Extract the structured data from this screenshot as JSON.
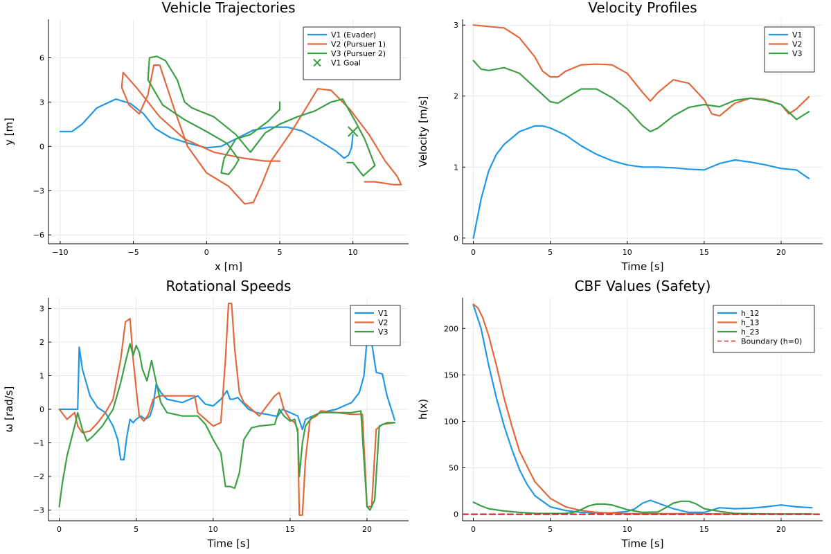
{
  "colors": {
    "c1": "#1f97e5",
    "c2": "#e2683c",
    "c3": "#3ba043",
    "boundary": "#d62728"
  },
  "chart_data": [
    {
      "id": "traj",
      "type": "line",
      "title": "Vehicle Trajectories",
      "xlabel": "x [m]",
      "ylabel": "y [m]",
      "xlim": [
        -10.8,
        13.8
      ],
      "ylim": [
        -6.6,
        8.6
      ],
      "xticks": [
        -10,
        -5,
        0,
        5,
        10
      ],
      "yticks": [
        -6,
        -3,
        0,
        3,
        6
      ],
      "xtick_labels": [
        "−10",
        "−5",
        "0",
        "5",
        "10"
      ],
      "ytick_labels": [
        "−6",
        "−3",
        "0",
        "3",
        "6"
      ],
      "grid": true,
      "legend_position": "top-right",
      "series": [
        {
          "name": "V1 (Evader)",
          "color": "#1f97e5",
          "x": [
            -10,
            -9.2,
            -8.5,
            -7.5,
            -6.2,
            -5.2,
            -4.3,
            -3.5,
            -2.5,
            -1.2,
            0,
            1,
            2.2,
            3.2,
            4.3,
            5.5,
            6.5,
            7.5,
            8.8,
            9.4,
            9.7,
            9.9,
            10
          ],
          "y": [
            1,
            1,
            1.5,
            2.6,
            3.2,
            2.9,
            2.2,
            1.2,
            0.6,
            0.2,
            -0.1,
            0,
            0.6,
            1.1,
            1.3,
            1.3,
            1.05,
            0.5,
            -0.3,
            -0.8,
            -0.6,
            -0.1,
            0.8
          ]
        },
        {
          "name": "V2 (Pursuer 1)",
          "color": "#e2683c",
          "x": [
            5,
            4,
            2.5,
            0.5,
            -1.5,
            -3.2,
            -4.8,
            -5.7,
            -5.8,
            -5.3,
            -4.6,
            -4,
            -3.6,
            -3.2,
            -2.2,
            -1.3,
            0,
            1.5,
            2.6,
            3.2,
            3.8,
            4.4,
            5.8,
            6.8,
            7.6,
            8.5,
            9.8,
            11.1,
            12.2,
            13,
            13.3,
            12.8,
            11.5,
            10.8
          ],
          "y": [
            -1,
            -1,
            -0.8,
            -0.4,
            0.5,
            2,
            4,
            5,
            4,
            2.8,
            2.2,
            3.5,
            5.5,
            5.5,
            2.5,
            0,
            -1.8,
            -2.7,
            -3.9,
            -3.8,
            -2.5,
            -1,
            1,
            2.6,
            3.9,
            3.8,
            2.5,
            0.8,
            -1,
            -2,
            -2.6,
            -2.6,
            -2.4,
            -2.4
          ]
        },
        {
          "name": "V3 (Pursuer 2)",
          "color": "#3ba043",
          "x": [
            5,
            5,
            4.2,
            3,
            2,
            1.2,
            1,
            1.5,
            1.9,
            2.2,
            1.4,
            0,
            -1.5,
            -3,
            -4,
            -3.9,
            -3.4,
            -2.8,
            -2,
            -1.5,
            -1,
            0.5,
            2,
            3,
            4,
            5,
            6.2,
            7.4,
            8.5,
            9.3,
            10.1,
            10.8,
            11.5,
            10.7,
            10,
            9.6
          ],
          "y": [
            3,
            2.5,
            1.7,
            0.8,
            0.5,
            -0.8,
            -1.8,
            -1.9,
            -1.4,
            -0.9,
            0.2,
            1,
            1.8,
            2.8,
            4.5,
            6,
            6.1,
            5.8,
            4.5,
            3,
            2.6,
            2,
            0.8,
            -0.4,
            0.9,
            1.5,
            2,
            2.4,
            3,
            3.2,
            1.8,
            0.5,
            -1.3,
            -2.0,
            -1.1,
            -1.1
          ]
        }
      ],
      "markers": [
        {
          "name": "V1 Goal",
          "color": "#3ba043",
          "x": 10,
          "y": 1,
          "symbol": "x"
        }
      ]
    },
    {
      "id": "vel",
      "type": "line",
      "title": "Velocity Profiles",
      "xlabel": "Time [s]",
      "ylabel": "Velocity [m/s]",
      "xlim": [
        -0.7,
        22.7
      ],
      "ylim": [
        -0.08,
        3.08
      ],
      "xticks": [
        0,
        5,
        10,
        15,
        20
      ],
      "yticks": [
        0,
        1,
        2,
        3
      ],
      "xtick_labels": [
        "0",
        "5",
        "10",
        "15",
        "20"
      ],
      "ytick_labels": [
        "0",
        "1",
        "2",
        "3"
      ],
      "grid": true,
      "legend_position": "top-right",
      "series": [
        {
          "name": "V1",
          "color": "#1f97e5",
          "x": [
            0,
            0.5,
            1,
            1.5,
            2,
            3,
            4,
            4.5,
            5,
            6,
            7,
            8,
            9,
            10,
            11,
            12,
            13,
            14,
            15,
            16,
            17,
            18,
            19,
            20,
            21,
            21.8
          ],
          "y": [
            0,
            0.55,
            0.95,
            1.18,
            1.32,
            1.5,
            1.58,
            1.58,
            1.55,
            1.45,
            1.3,
            1.18,
            1.09,
            1.03,
            1,
            1,
            0.99,
            0.97,
            0.96,
            1.05,
            1.1,
            1.07,
            1.03,
            0.98,
            0.96,
            0.84
          ]
        },
        {
          "name": "V2",
          "color": "#e2683c",
          "x": [
            0,
            1,
            2,
            3,
            4,
            4.5,
            5,
            5.5,
            6,
            7,
            8,
            9,
            10,
            11,
            11.5,
            12,
            13,
            14,
            15,
            15.5,
            16,
            17,
            18,
            19,
            20,
            20.5,
            21,
            21.8
          ],
          "y": [
            3,
            2.98,
            2.96,
            2.82,
            2.55,
            2.35,
            2.27,
            2.27,
            2.35,
            2.44,
            2.45,
            2.44,
            2.32,
            2.05,
            1.93,
            2.05,
            2.23,
            2.18,
            1.95,
            1.75,
            1.72,
            1.9,
            1.97,
            1.95,
            1.88,
            1.75,
            1.82,
            1.99
          ]
        },
        {
          "name": "V3",
          "color": "#3ba043",
          "x": [
            0,
            0.5,
            1,
            2,
            3,
            4,
            5,
            5.5,
            6,
            7,
            8,
            9,
            10,
            11,
            11.5,
            12,
            13,
            14,
            15,
            16,
            17,
            18,
            19,
            20,
            21,
            21.8
          ],
          "y": [
            2.5,
            2.38,
            2.36,
            2.4,
            2.32,
            2.12,
            1.92,
            1.9,
            1.97,
            2.1,
            2.1,
            1.98,
            1.82,
            1.58,
            1.5,
            1.55,
            1.72,
            1.84,
            1.88,
            1.85,
            1.94,
            1.97,
            1.94,
            1.88,
            1.67,
            1.78
          ]
        }
      ]
    },
    {
      "id": "rot",
      "type": "line",
      "title": "Rotational Speeds",
      "xlabel": "Time [s]",
      "ylabel": "ω [rad/s]",
      "xlim": [
        -0.7,
        22.7
      ],
      "ylim": [
        -3.32,
        3.32
      ],
      "xticks": [
        0,
        5,
        10,
        15,
        20
      ],
      "yticks": [
        -3,
        -2,
        -1,
        0,
        1,
        2,
        3
      ],
      "xtick_labels": [
        "0",
        "5",
        "10",
        "15",
        "20"
      ],
      "ytick_labels": [
        "−3",
        "−2",
        "−1",
        "0",
        "1",
        "2",
        "3"
      ],
      "grid": true,
      "legend_position": "top-right",
      "series": [
        {
          "name": "V1",
          "color": "#1f97e5",
          "x": [
            0,
            1,
            1.2,
            1.3,
            1.5,
            2,
            2.5,
            3,
            3.5,
            3.8,
            4,
            4.2,
            4.4,
            4.6,
            4.8,
            5,
            5.3,
            5.6,
            5.9,
            6.1,
            6.3,
            6.6,
            7,
            8,
            9,
            9.5,
            10,
            10.5,
            10.9,
            11.1,
            11.3,
            11.6,
            11.9,
            12.3,
            12.8,
            13.5,
            14,
            14.2,
            14.5,
            15,
            15.5,
            15.8,
            16,
            16.5,
            17,
            18,
            19,
            19.5,
            19.8,
            20,
            20.3,
            20.6,
            21,
            21.3,
            21.8
          ],
          "y": [
            0,
            0,
            0,
            1.85,
            1.2,
            0.4,
            0.05,
            -0.1,
            -0.5,
            -0.9,
            -1.5,
            -1.5,
            -0.8,
            -0.3,
            -0.4,
            -0.3,
            -0.2,
            -0.3,
            -0.2,
            0.1,
            0.75,
            0.5,
            0.3,
            0.2,
            0.4,
            0.15,
            0.1,
            0.3,
            0.55,
            0.3,
            0.3,
            0.35,
            0.2,
            0,
            -0.1,
            -0.15,
            -0.2,
            -0.2,
            0,
            -0.1,
            -0.2,
            -0.6,
            -0.3,
            -0.2,
            -0.1,
            0,
            0.2,
            0.5,
            1,
            2.1,
            2.0,
            1.1,
            1.05,
            0.4,
            -0.32
          ]
        },
        {
          "name": "V2",
          "color": "#e2683c",
          "x": [
            0,
            0.5,
            1,
            1.2,
            1.5,
            2,
            2.5,
            3,
            3.5,
            4,
            4.3,
            4.6,
            4.8,
            5,
            5.2,
            5.5,
            5.8,
            6.1,
            6.5,
            7,
            8,
            8.8,
            9,
            9.5,
            10,
            10.5,
            10.8,
            11,
            11.2,
            11.4,
            11.7,
            12,
            12.5,
            13,
            14,
            14.3,
            14.6,
            15,
            15.3,
            15.5,
            15.6,
            15.8,
            16,
            16.3,
            16.7,
            17,
            18,
            19,
            19.7,
            20,
            20.3,
            20.6,
            21,
            21.8
          ],
          "y": [
            0,
            -0.3,
            -0.1,
            -0.5,
            -0.7,
            -0.65,
            -0.4,
            -0.1,
            0.3,
            1.5,
            2.6,
            2.7,
            1.5,
            0.6,
            -0.2,
            -0.35,
            -0.15,
            0.3,
            0.4,
            0.4,
            0.4,
            0.4,
            -0.1,
            -0.3,
            -0.5,
            -0.4,
            1.5,
            3.15,
            3.15,
            1.8,
            0.5,
            0.2,
            0,
            -0.2,
            0.4,
            0.5,
            0,
            -0.3,
            -0.4,
            -0.6,
            -3.15,
            -3.15,
            -1.5,
            -0.3,
            -0.2,
            -0.05,
            -0.1,
            -0.15,
            -0.15,
            -2.9,
            -2.9,
            -0.6,
            -0.45,
            -0.4
          ]
        },
        {
          "name": "V3",
          "color": "#3ba043",
          "x": [
            0,
            0.2,
            0.5,
            1,
            1.2,
            1.5,
            1.8,
            2.2,
            2.8,
            3.5,
            4,
            4.3,
            4.6,
            4.8,
            5,
            5.2,
            5.4,
            5.7,
            6,
            6.3,
            6.6,
            7,
            8,
            9,
            9.5,
            10,
            10.5,
            10.8,
            11.1,
            11.4,
            11.7,
            12,
            12.5,
            13,
            14,
            14.3,
            14.6,
            15,
            15.3,
            15.5,
            15.6,
            15.8,
            16,
            16.5,
            17,
            18,
            19,
            19.6,
            19.8,
            20,
            20.2,
            20.5,
            20.8,
            21.3,
            21.8
          ],
          "y": [
            -2.9,
            -2.2,
            -1.4,
            -0.5,
            -0.1,
            -0.6,
            -0.95,
            -0.8,
            -0.5,
            0,
            0.8,
            1.4,
            1.95,
            1.6,
            1.9,
            1.7,
            1.2,
            0.85,
            1.45,
            0.8,
            0.2,
            -0.1,
            -0.2,
            -0.2,
            -0.45,
            -0.9,
            -1.3,
            -2.3,
            -2.3,
            -2.35,
            -1.9,
            -0.9,
            -0.55,
            -0.5,
            -0.45,
            0,
            -0.2,
            -0.35,
            -0.3,
            -0.7,
            -2.0,
            -1.0,
            -0.5,
            -0.2,
            -0.1,
            -0.1,
            -0.1,
            -0.05,
            -1.5,
            -2.9,
            -3.0,
            -2.7,
            -0.5,
            -0.4,
            -0.4
          ]
        }
      ]
    },
    {
      "id": "cbf",
      "type": "line",
      "title": "CBF Values (Safety)",
      "xlabel": "Time [s]",
      "ylabel": "h(x)",
      "xlim": [
        -0.7,
        22.7
      ],
      "ylim": [
        -7,
        233
      ],
      "xticks": [
        0,
        5,
        10,
        15,
        20
      ],
      "yticks": [
        0,
        50,
        100,
        150,
        200
      ],
      "xtick_labels": [
        "0",
        "5",
        "10",
        "15",
        "20"
      ],
      "ytick_labels": [
        "0",
        "50",
        "100",
        "150",
        "200"
      ],
      "grid": true,
      "legend_position": "top-right",
      "series": [
        {
          "name": "h_12",
          "color": "#1f97e5",
          "x": [
            0,
            0.5,
            1,
            1.5,
            2,
            2.5,
            3,
            3.5,
            4,
            5,
            6,
            7,
            8,
            9,
            10,
            10.5,
            11,
            11.5,
            12,
            13,
            14,
            15,
            16,
            17,
            18,
            19,
            20,
            21,
            22
          ],
          "y": [
            225,
            200,
            160,
            125,
            95,
            70,
            48,
            32,
            20,
            8,
            4,
            2,
            1.5,
            1.5,
            3,
            6,
            12,
            15,
            12,
            6,
            2,
            2,
            7,
            6,
            6.5,
            8,
            10,
            8,
            7
          ]
        },
        {
          "name": "h_13",
          "color": "#e2683c",
          "x": [
            0,
            0.3,
            0.6,
            1,
            1.5,
            2,
            2.5,
            3,
            4,
            5,
            6,
            7,
            8,
            10,
            12,
            14,
            16,
            18,
            20,
            22
          ],
          "y": [
            226,
            222,
            212,
            192,
            160,
            125,
            95,
            68,
            35,
            17,
            8,
            4,
            2,
            0.5,
            0.5,
            0.5,
            0.3,
            0.2,
            0.2,
            0.2
          ]
        },
        {
          "name": "h_23",
          "color": "#3ba043",
          "x": [
            0,
            0.5,
            1,
            2,
            3,
            4,
            5,
            6,
            6.5,
            7,
            7.5,
            8,
            8.5,
            9,
            10,
            11,
            12,
            12.5,
            13,
            13.5,
            14,
            14.5,
            15,
            16,
            17,
            18,
            19,
            20,
            21,
            22
          ],
          "y": [
            13,
            9,
            6,
            3.5,
            2,
            1,
            0.8,
            1,
            2,
            5,
            9,
            11,
            11,
            10,
            5,
            2,
            2.5,
            7,
            12,
            14,
            14,
            11,
            6,
            3,
            1,
            0.5,
            0.3,
            0.2,
            0.2,
            0.2
          ]
        },
        {
          "name": "Boundary (h=0)",
          "color": "#d62728",
          "dashed": true,
          "x": [
            -0.7,
            22.7
          ],
          "y": [
            0,
            0
          ]
        }
      ]
    }
  ]
}
